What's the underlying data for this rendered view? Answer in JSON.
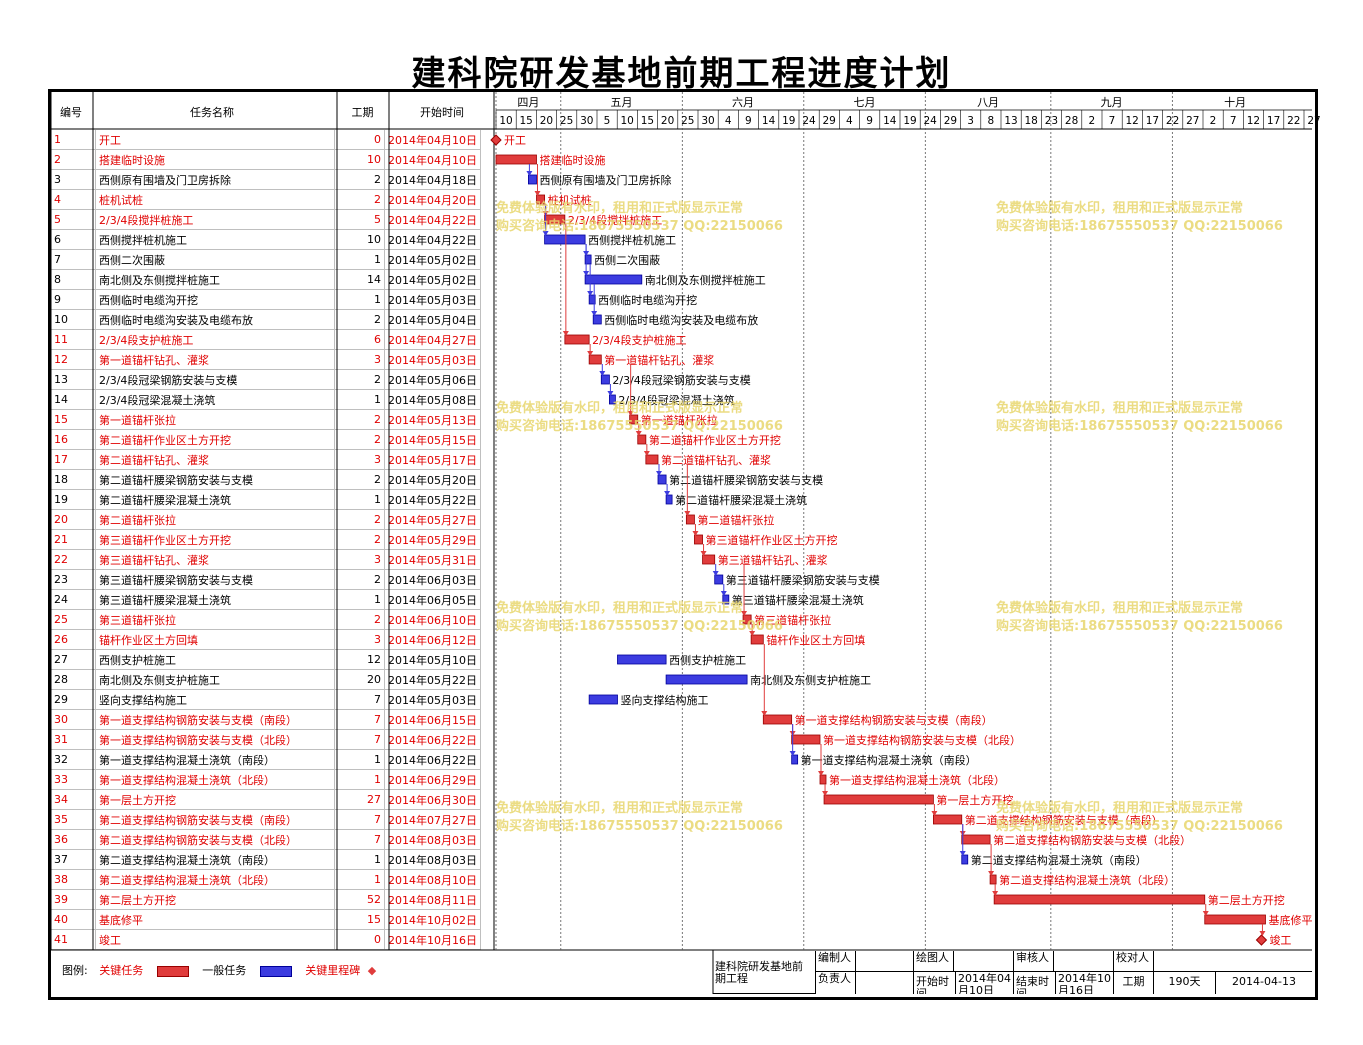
{
  "title": "建科院研发基地前期工程进度计划",
  "headers": {
    "id": "编号",
    "name": "任务名称",
    "duration": "工期",
    "start": "开始时间"
  },
  "months": [
    {
      "label": "四月",
      "start": 0,
      "end": 16
    },
    {
      "label": "五月",
      "start": 16,
      "end": 46
    },
    {
      "label": "六月",
      "start": 46,
      "end": 76
    },
    {
      "label": "七月",
      "start": 76,
      "end": 106
    },
    {
      "label": "八月",
      "start": 106,
      "end": 137
    },
    {
      "label": "九月",
      "start": 137,
      "end": 167
    },
    {
      "label": "十月",
      "start": 167,
      "end": 198
    }
  ],
  "days": [
    "10",
    "15",
    "20",
    "25",
    "30",
    "5",
    "10",
    "15",
    "20",
    "25",
    "30",
    "4",
    "9",
    "14",
    "19",
    "24",
    "29",
    "4",
    "9",
    "14",
    "19",
    "24",
    "29",
    "3",
    "8",
    "13",
    "18",
    "23",
    "28",
    "2",
    "7",
    "12",
    "17",
    "22",
    "27",
    "2",
    "7",
    "12",
    "17",
    "22",
    "27"
  ],
  "tasks": [
    {
      "id": "1",
      "name": "开工",
      "dur": "0",
      "start": "2014年04月10日",
      "s": 0,
      "d": 0,
      "crit": true
    },
    {
      "id": "2",
      "name": "搭建临时设施",
      "dur": "10",
      "start": "2014年04月10日",
      "s": 0,
      "d": 10,
      "crit": true
    },
    {
      "id": "3",
      "name": "西侧原有围墙及门卫房拆除",
      "dur": "2",
      "start": "2014年04月18日",
      "s": 8,
      "d": 2,
      "crit": false
    },
    {
      "id": "4",
      "name": "桩机试桩",
      "dur": "2",
      "start": "2014年04月20日",
      "s": 10,
      "d": 2,
      "crit": true
    },
    {
      "id": "5",
      "name": "2/3/4段搅拌桩施工",
      "dur": "5",
      "start": "2014年04月22日",
      "s": 12,
      "d": 5,
      "crit": true
    },
    {
      "id": "6",
      "name": "西侧搅拌桩机施工",
      "dur": "10",
      "start": "2014年04月22日",
      "s": 12,
      "d": 10,
      "crit": false
    },
    {
      "id": "7",
      "name": "西侧二次围蔽",
      "dur": "1",
      "start": "2014年05月02日",
      "s": 22,
      "d": 1,
      "crit": false
    },
    {
      "id": "8",
      "name": "南北侧及东侧搅拌桩施工",
      "dur": "14",
      "start": "2014年05月02日",
      "s": 22,
      "d": 14,
      "crit": false
    },
    {
      "id": "9",
      "name": "西侧临时电缆沟开挖",
      "dur": "1",
      "start": "2014年05月03日",
      "s": 23,
      "d": 1,
      "crit": false
    },
    {
      "id": "10",
      "name": "西侧临时电缆沟安装及电缆布放",
      "dur": "2",
      "start": "2014年05月04日",
      "s": 24,
      "d": 2,
      "crit": false
    },
    {
      "id": "11",
      "name": "2/3/4段支护桩施工",
      "dur": "6",
      "start": "2014年04月27日",
      "s": 17,
      "d": 6,
      "crit": true
    },
    {
      "id": "12",
      "name": "第一道锚杆钻孔、灌浆",
      "dur": "3",
      "start": "2014年05月03日",
      "s": 23,
      "d": 3,
      "crit": true
    },
    {
      "id": "13",
      "name": "2/3/4段冠梁钢筋安装与支模",
      "dur": "2",
      "start": "2014年05月06日",
      "s": 26,
      "d": 2,
      "crit": false
    },
    {
      "id": "14",
      "name": "2/3/4段冠梁混凝土浇筑",
      "dur": "1",
      "start": "2014年05月08日",
      "s": 28,
      "d": 1,
      "crit": false
    },
    {
      "id": "15",
      "name": "第一道锚杆张拉",
      "dur": "2",
      "start": "2014年05月13日",
      "s": 33,
      "d": 2,
      "crit": true
    },
    {
      "id": "16",
      "name": "第二道锚杆作业区土方开挖",
      "dur": "2",
      "start": "2014年05月15日",
      "s": 35,
      "d": 2,
      "crit": true
    },
    {
      "id": "17",
      "name": "第二道锚杆钻孔、灌浆",
      "dur": "3",
      "start": "2014年05月17日",
      "s": 37,
      "d": 3,
      "crit": true
    },
    {
      "id": "18",
      "name": "第二道锚杆腰梁钢筋安装与支模",
      "dur": "2",
      "start": "2014年05月20日",
      "s": 40,
      "d": 2,
      "crit": false
    },
    {
      "id": "19",
      "name": "第二道锚杆腰梁混凝土浇筑",
      "dur": "1",
      "start": "2014年05月22日",
      "s": 42,
      "d": 1,
      "crit": false
    },
    {
      "id": "20",
      "name": "第二道锚杆张拉",
      "dur": "2",
      "start": "2014年05月27日",
      "s": 47,
      "d": 2,
      "crit": true
    },
    {
      "id": "21",
      "name": "第三道锚杆作业区土方开挖",
      "dur": "2",
      "start": "2014年05月29日",
      "s": 49,
      "d": 2,
      "crit": true
    },
    {
      "id": "22",
      "name": "第三道锚杆钻孔、灌浆",
      "dur": "3",
      "start": "2014年05月31日",
      "s": 51,
      "d": 3,
      "crit": true
    },
    {
      "id": "23",
      "name": "第三道锚杆腰梁钢筋安装与支模",
      "dur": "2",
      "start": "2014年06月03日",
      "s": 54,
      "d": 2,
      "crit": false
    },
    {
      "id": "24",
      "name": "第三道锚杆腰梁混凝土浇筑",
      "dur": "1",
      "start": "2014年06月05日",
      "s": 56,
      "d": 1,
      "crit": false
    },
    {
      "id": "25",
      "name": "第三道锚杆张拉",
      "dur": "2",
      "start": "2014年06月10日",
      "s": 61,
      "d": 2,
      "crit": true
    },
    {
      "id": "26",
      "name": "锚杆作业区土方回填",
      "dur": "3",
      "start": "2014年06月12日",
      "s": 63,
      "d": 3,
      "crit": true
    },
    {
      "id": "27",
      "name": "西侧支护桩施工",
      "dur": "12",
      "start": "2014年05月10日",
      "s": 30,
      "d": 12,
      "crit": false
    },
    {
      "id": "28",
      "name": "南北侧及东侧支护桩施工",
      "dur": "20",
      "start": "2014年05月22日",
      "s": 42,
      "d": 20,
      "crit": false
    },
    {
      "id": "29",
      "name": "竖向支撑结构施工",
      "dur": "7",
      "start": "2014年05月03日",
      "s": 23,
      "d": 7,
      "crit": false
    },
    {
      "id": "30",
      "name": "第一道支撑结构钢筋安装与支模（南段）",
      "dur": "7",
      "start": "2014年06月15日",
      "s": 66,
      "d": 7,
      "crit": true
    },
    {
      "id": "31",
      "name": "第一道支撑结构钢筋安装与支模（北段）",
      "dur": "7",
      "start": "2014年06月22日",
      "s": 73,
      "d": 7,
      "crit": true
    },
    {
      "id": "32",
      "name": "第一道支撑结构混凝土浇筑（南段）",
      "dur": "1",
      "start": "2014年06月22日",
      "s": 73,
      "d": 1,
      "crit": false
    },
    {
      "id": "33",
      "name": "第一道支撑结构混凝土浇筑（北段）",
      "dur": "1",
      "start": "2014年06月29日",
      "s": 80,
      "d": 1,
      "crit": true
    },
    {
      "id": "34",
      "name": "第一层土方开挖",
      "dur": "27",
      "start": "2014年06月30日",
      "s": 81,
      "d": 27,
      "crit": true
    },
    {
      "id": "35",
      "name": "第二道支撑结构钢筋安装与支模（南段）",
      "dur": "7",
      "start": "2014年07月27日",
      "s": 108,
      "d": 7,
      "crit": true
    },
    {
      "id": "36",
      "name": "第二道支撑结构钢筋安装与支模（北段）",
      "dur": "7",
      "start": "2014年08月03日",
      "s": 115,
      "d": 7,
      "crit": true
    },
    {
      "id": "37",
      "name": "第二道支撑结构混凝土浇筑（南段）",
      "dur": "1",
      "start": "2014年08月03日",
      "s": 115,
      "d": 1,
      "crit": false
    },
    {
      "id": "38",
      "name": "第二道支撑结构混凝土浇筑（北段）",
      "dur": "1",
      "start": "2014年08月10日",
      "s": 122,
      "d": 1,
      "crit": true
    },
    {
      "id": "39",
      "name": "第二层土方开挖",
      "dur": "52",
      "start": "2014年08月11日",
      "s": 123,
      "d": 52,
      "crit": true
    },
    {
      "id": "40",
      "name": "基底修平",
      "dur": "15",
      "start": "2014年10月02日",
      "s": 175,
      "d": 15,
      "crit": true
    },
    {
      "id": "41",
      "name": "竣工",
      "dur": "0",
      "start": "2014年10月16日",
      "s": 189,
      "d": 0,
      "crit": true
    }
  ],
  "legend": {
    "label": "图例:",
    "critical": "关键任务",
    "normal": "一般任务",
    "milestone": "关键里程碑"
  },
  "footer": {
    "project": "建科院研发基地前期工程",
    "editor_label": "编制人",
    "drawer_label": "绘图人",
    "reviewer_label": "审核人",
    "checker_label": "校对人",
    "owner_label": "负责人",
    "start_label": "开始时间",
    "start_value": "2014年04月10日",
    "end_label": "结束时间",
    "end_value": "2014年10月16日",
    "duration_label": "工期",
    "duration_value": "190天",
    "date": "2014-04-13"
  },
  "watermark": {
    "line1": "免费体验版有水印，租用和正式版显示正常",
    "line2": "购买咨询电话:18675550537 QQ:22150066"
  },
  "colors": {
    "critical": "#e03c3c",
    "normal": "#3c3ce0",
    "critical_text": "#e00000",
    "normal_text": "#000000",
    "watermark": "#e8d66e"
  }
}
